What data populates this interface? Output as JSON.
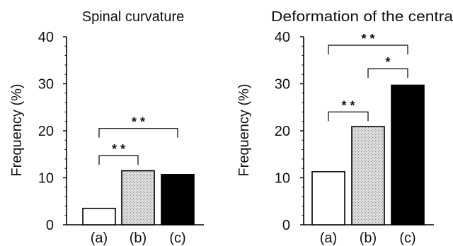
{
  "chart_data": [
    {
      "type": "bar",
      "title": "Spinal curvature",
      "xlabel": "",
      "ylabel": "Frequency (%)",
      "ylim": [
        0,
        40
      ],
      "yticks": [
        "0",
        "10",
        "20",
        "30",
        "40"
      ],
      "categories": [
        "(a)",
        "(b)",
        "(c)"
      ],
      "values": [
        3.5,
        11.5,
        10.7
      ],
      "bar_fills": [
        "#ffffff",
        "#c8c8c8",
        "#000000"
      ],
      "significance": [
        {
          "from": 0,
          "to": 1,
          "label": "* *",
          "level": 14.7
        },
        {
          "from": 0,
          "to": 2,
          "label": "* *",
          "level": 20.5
        }
      ],
      "grid": false
    },
    {
      "type": "bar",
      "title": "Deformation of the centra",
      "xlabel": "",
      "ylabel": "Frequency (%)",
      "ylim": [
        0,
        40
      ],
      "yticks": [
        "0",
        "10",
        "20",
        "30",
        "40"
      ],
      "categories": [
        "(a)",
        "(b)",
        "(c)"
      ],
      "values": [
        11.3,
        20.9,
        29.7
      ],
      "bar_fills": [
        "#ffffff",
        "#c8c8c8",
        "#000000"
      ],
      "significance": [
        {
          "from": 0,
          "to": 1,
          "label": "* *",
          "level": 24.0
        },
        {
          "from": 1,
          "to": 2,
          "label": "*",
          "level": 33.2
        },
        {
          "from": 0,
          "to": 2,
          "label": "* *",
          "level": 38.2
        }
      ],
      "grid": false
    }
  ]
}
